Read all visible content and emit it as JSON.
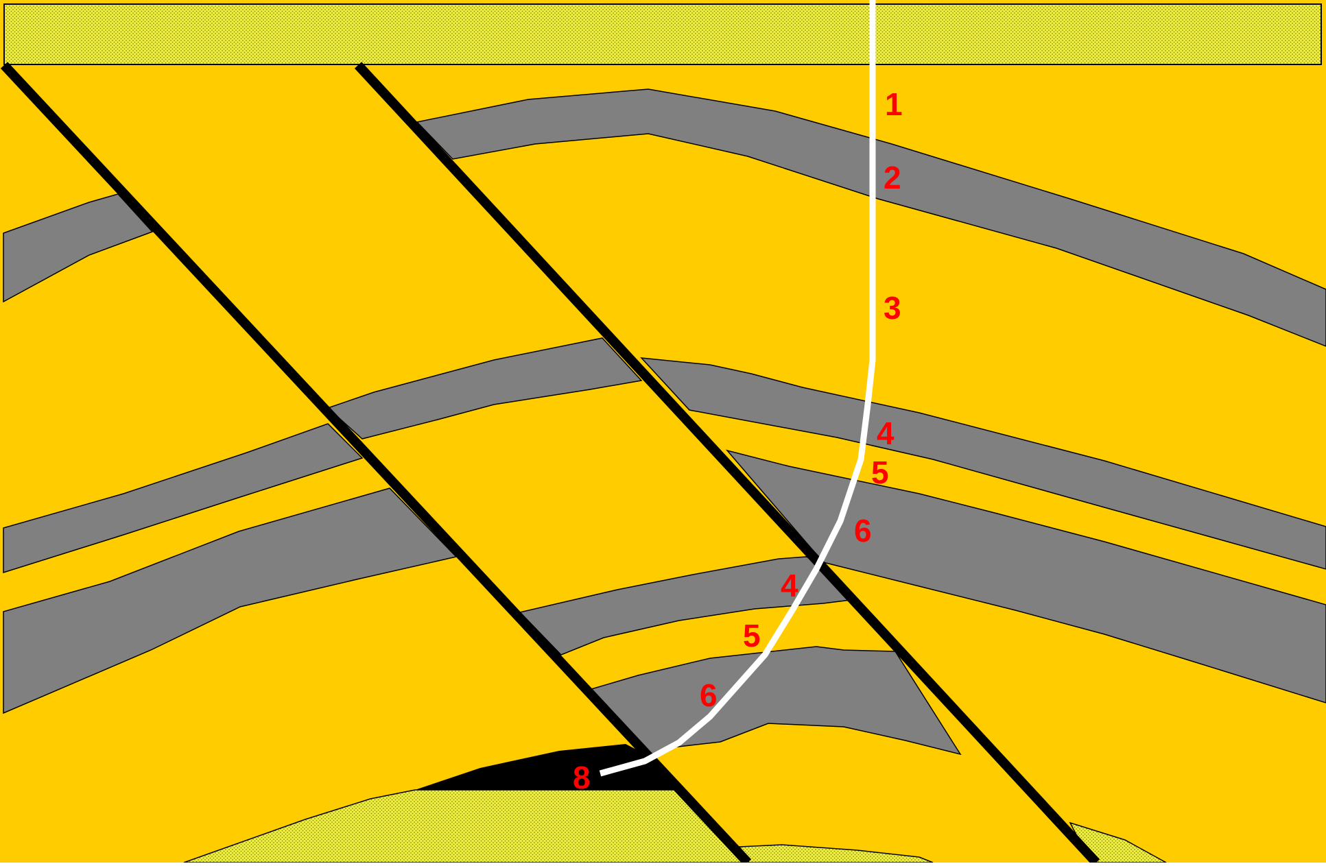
{
  "colors": {
    "background_rock": "#FFCC00",
    "shale_layer": "#808080",
    "outline": "#000000",
    "fault": "#000000",
    "dotted_sand": "#EEEE44",
    "dot": "#8C8C00",
    "wellbore": "#FFFFFF",
    "label": "#FF0000",
    "reservoir_pocket": "#000000"
  },
  "markers": {
    "m1": "1",
    "m2": "2",
    "m3": "3",
    "m4a": "4",
    "m5a": "5",
    "m6a": "6",
    "m4b": "4",
    "m5b": "5",
    "m6b": "6",
    "m8": "8"
  }
}
